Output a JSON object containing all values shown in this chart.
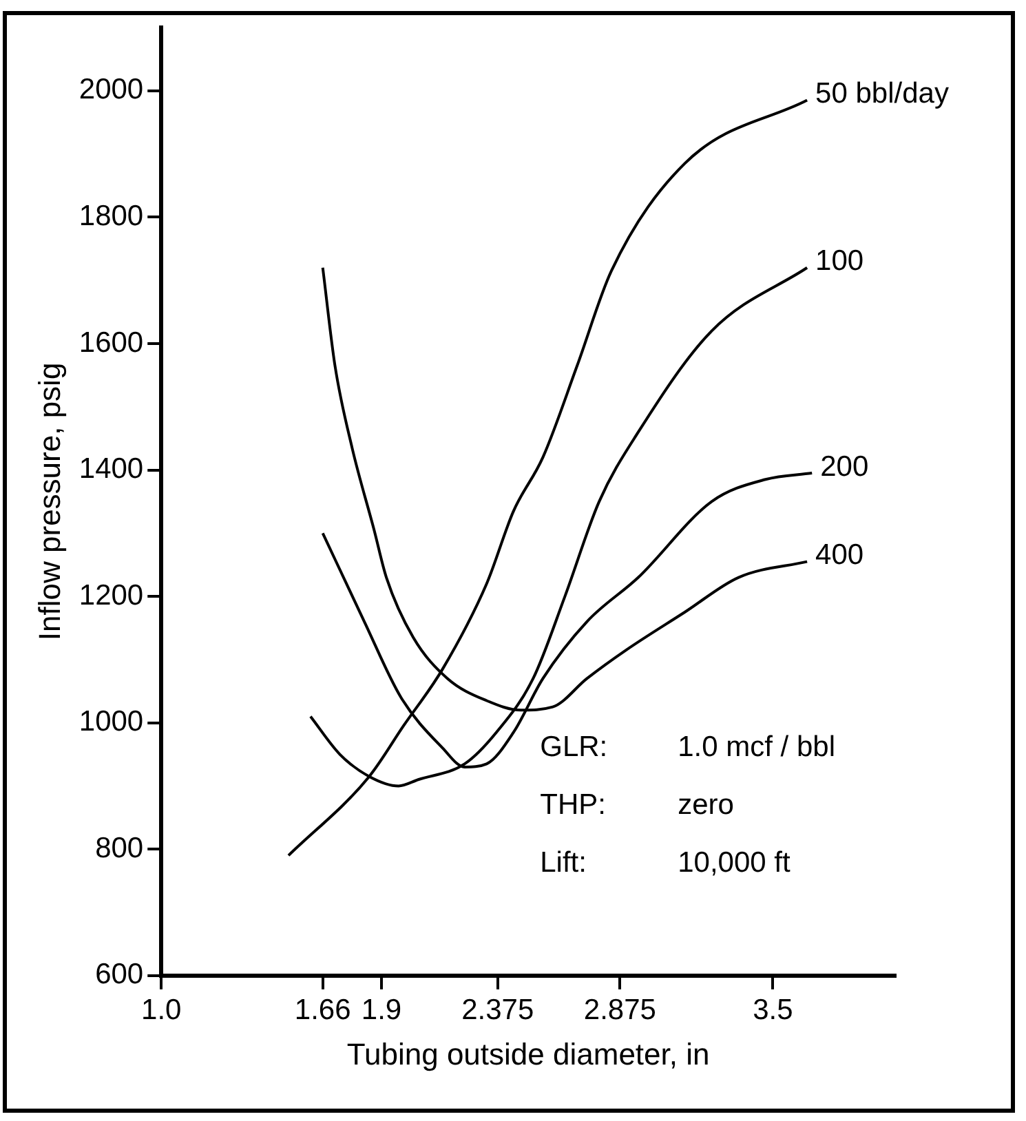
{
  "chart_data": {
    "type": "line",
    "xlabel": "Tubing outside diameter, in",
    "ylabel": "Inflow pressure, psig",
    "xlim": [
      1.0,
      4.0
    ],
    "xticks": [
      {
        "value": 1.0,
        "label": "1.0"
      },
      1.66,
      1.9,
      2.375,
      2.875,
      3.5
    ],
    "ylim": [
      600,
      2100
    ],
    "yticks": [
      600,
      800,
      1000,
      1200,
      1400,
      1600,
      1800,
      2000
    ],
    "grid": false,
    "legend": false,
    "marker": "none",
    "line_style": "solid",
    "series": [
      {
        "name": "50 bbl/day",
        "color": "#000000",
        "x": [
          1.52,
          1.85,
          1.99,
          2.15,
          2.33,
          2.44,
          2.56,
          2.7,
          2.84,
          3.14,
          3.64
        ],
        "values": [
          790,
          915,
          995,
          1085,
          1220,
          1335,
          1420,
          1565,
          1715,
          1885,
          1985
        ]
      },
      {
        "name": "100",
        "color": "#000000",
        "x": [
          1.61,
          1.73,
          1.85,
          1.97,
          2.05,
          2.24,
          2.37,
          2.52,
          2.65,
          2.79,
          2.95,
          3.25,
          3.64
        ],
        "values": [
          1010,
          950,
          915,
          900,
          910,
          935,
          985,
          1070,
          1200,
          1350,
          1460,
          1620,
          1720
        ]
      },
      {
        "name": "200",
        "color": "#000000",
        "x": [
          1.66,
          1.83,
          1.98,
          2.15,
          2.24,
          2.33,
          2.44,
          2.56,
          2.74,
          2.95,
          3.25,
          3.47,
          3.66
        ],
        "values": [
          1300,
          1160,
          1040,
          960,
          930,
          935,
          985,
          1070,
          1160,
          1230,
          1350,
          1385,
          1395
        ]
      },
      {
        "name": "400",
        "color": "#000000",
        "x": [
          1.66,
          1.71,
          1.78,
          1.87,
          1.92,
          2.03,
          2.17,
          2.33,
          2.47,
          2.6,
          2.74,
          2.9,
          3.14,
          3.36,
          3.64
        ],
        "values": [
          1720,
          1565,
          1435,
          1305,
          1230,
          1135,
          1070,
          1035,
          1020,
          1025,
          1070,
          1115,
          1175,
          1230,
          1255
        ]
      }
    ],
    "annotations": [
      "GLR: 1.0 mcf / bbl",
      "THP: zero",
      "Lift: 10,000 ft"
    ]
  }
}
